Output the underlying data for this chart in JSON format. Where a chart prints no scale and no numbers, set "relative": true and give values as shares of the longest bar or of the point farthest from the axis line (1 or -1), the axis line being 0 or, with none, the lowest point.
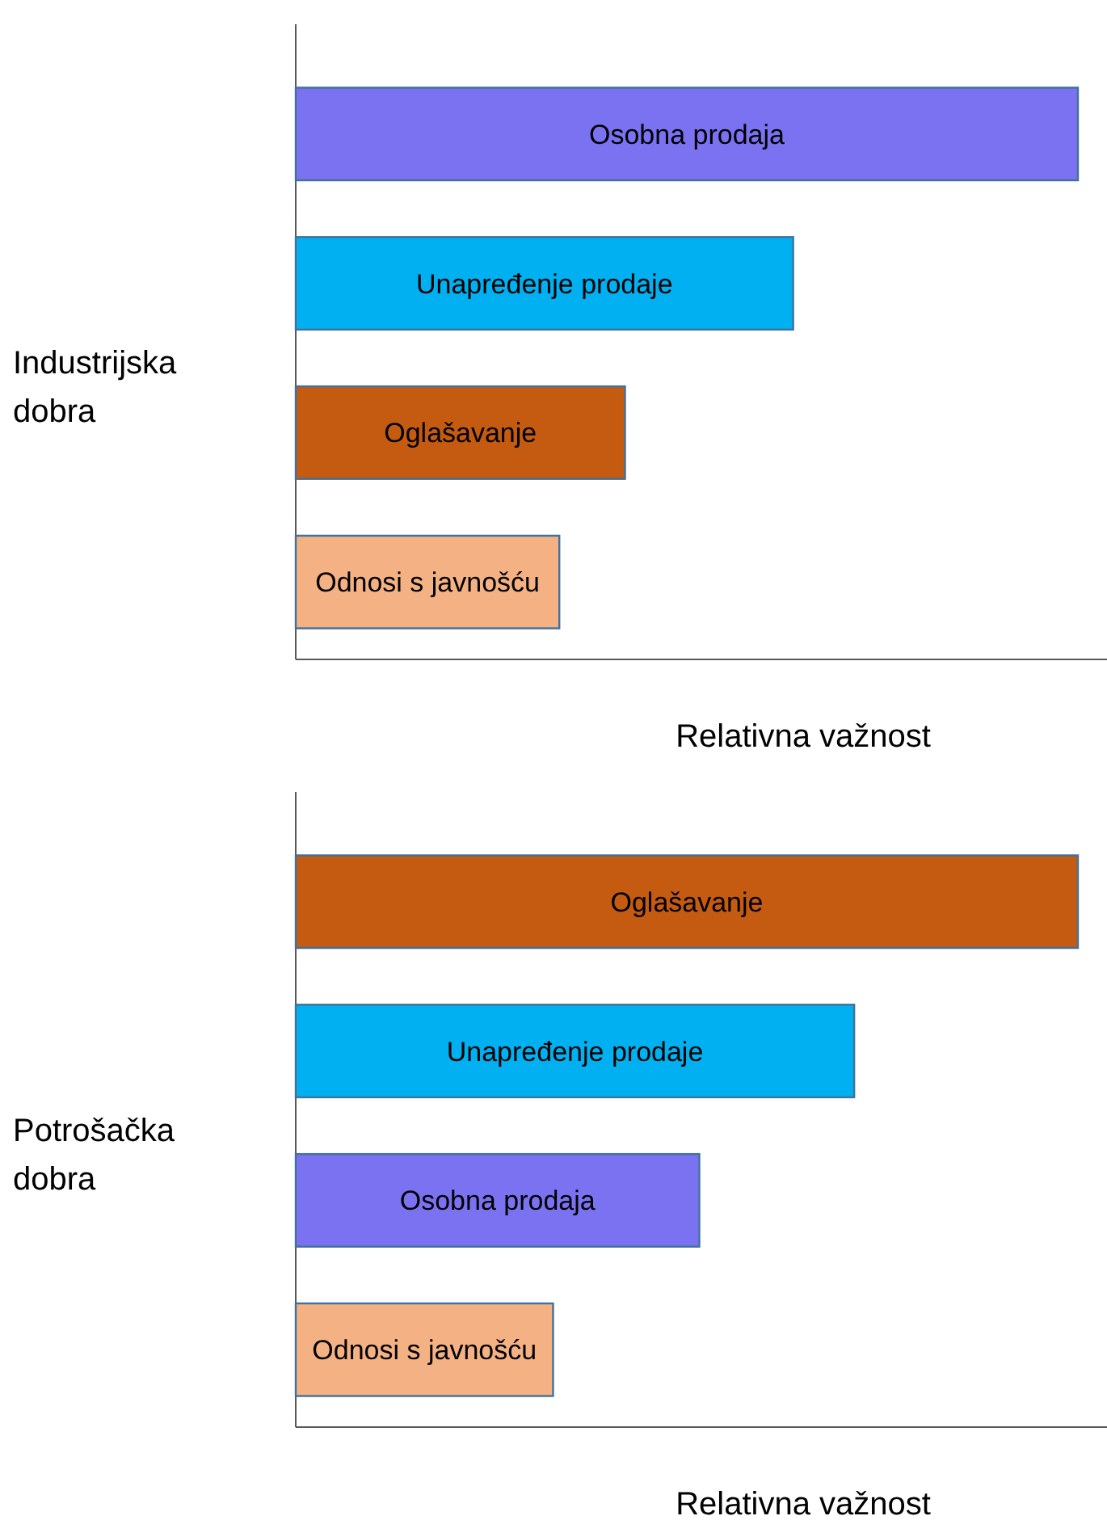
{
  "chart_data": [
    {
      "type": "bar",
      "orientation": "horizontal",
      "relative": true,
      "ylabel": "Industrijska dobra",
      "xlabel": "Relativna važnost",
      "data_labels": false,
      "categories": [
        "Osobna prodaja",
        "Unapređenje prodaje",
        "Oglašavanje",
        "Odnosi s javnošću"
      ],
      "values": [
        1,
        0.636,
        0.421,
        0.337
      ],
      "colors": [
        "#7b72f2",
        "#00b0f0",
        "#c55a11",
        "#f4b183"
      ]
    },
    {
      "type": "bar",
      "orientation": "horizontal",
      "relative": true,
      "ylabel": "Potrošačka dobra",
      "xlabel": "Relativna važnost",
      "data_labels": false,
      "categories": [
        "Oglašavanje",
        "Unapređenje prodaje",
        "Osobna prodaja",
        "Odnosi s javnošću"
      ],
      "values": [
        1,
        0.714,
        0.516,
        0.329
      ],
      "colors": [
        "#c55a11",
        "#00b0f0",
        "#7b72f2",
        "#f4b183"
      ]
    }
  ]
}
